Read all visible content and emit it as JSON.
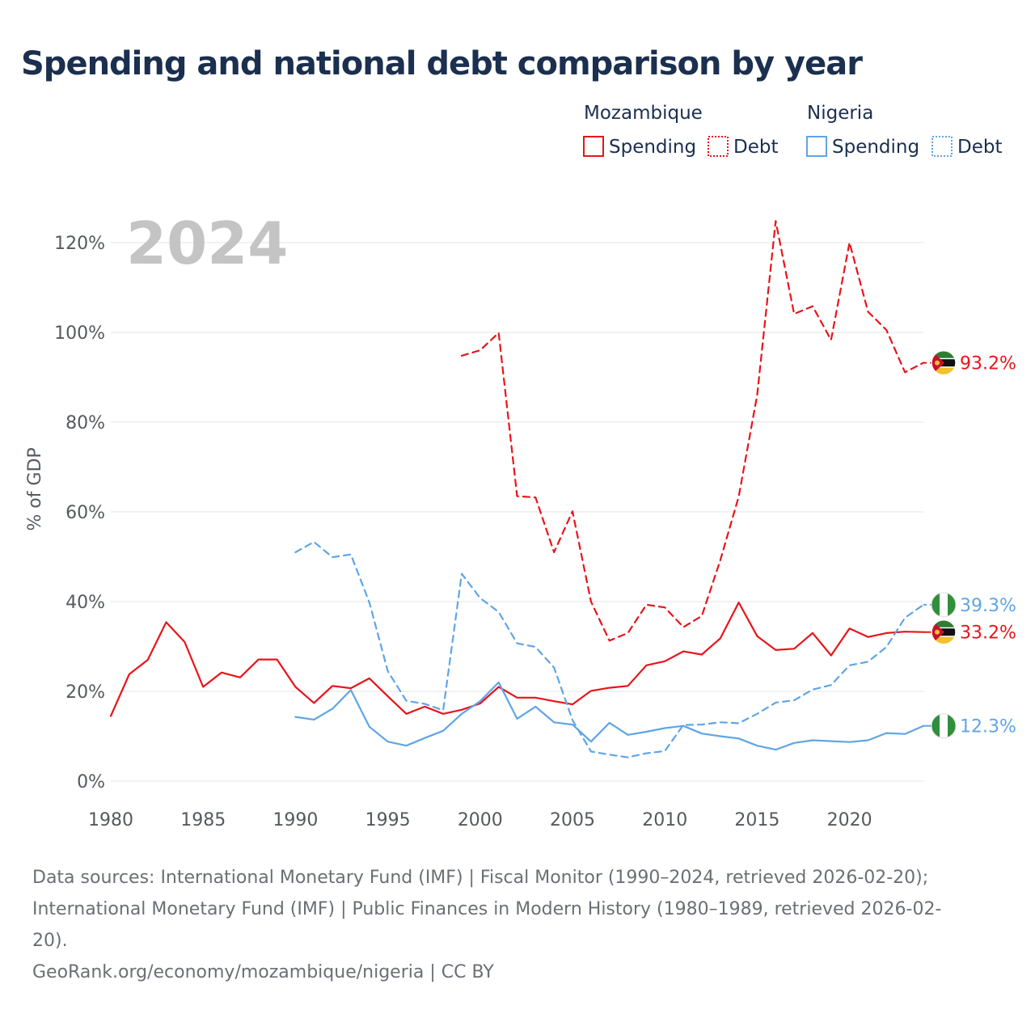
{
  "colors": {
    "mozambique": "#e8141a",
    "nigeria": "#5fa5e6",
    "title": "#1b2f4f",
    "axis_text": "#555a60"
  },
  "chart_data": {
    "type": "line",
    "title": "Spending and national debt comparison by year",
    "year_label": "2024",
    "ylabel": "% of GDP",
    "xlabel": "",
    "xlim": [
      1980,
      2024
    ],
    "ylim": [
      0,
      125
    ],
    "y_ticks": [
      {
        "value": 0,
        "label": "0%"
      },
      {
        "value": 20,
        "label": "20%"
      },
      {
        "value": 40,
        "label": "40%"
      },
      {
        "value": 60,
        "label": "60%"
      },
      {
        "value": 80,
        "label": "80%"
      },
      {
        "value": 100,
        "label": "100%"
      },
      {
        "value": 120,
        "label": "120%"
      }
    ],
    "x_ticks": [
      {
        "value": 1980,
        "label": "1980"
      },
      {
        "value": 1985,
        "label": "1985"
      },
      {
        "value": 1990,
        "label": "1990"
      },
      {
        "value": 1995,
        "label": "1995"
      },
      {
        "value": 2000,
        "label": "2000"
      },
      {
        "value": 2005,
        "label": "2005"
      },
      {
        "value": 2010,
        "label": "2010"
      },
      {
        "value": 2015,
        "label": "2015"
      },
      {
        "value": 2020,
        "label": "2020"
      }
    ],
    "legend": {
      "groups": [
        {
          "country": "Mozambique",
          "items": [
            {
              "label": "Spending",
              "style": "solid"
            },
            {
              "label": "Debt",
              "style": "dashed"
            }
          ]
        },
        {
          "country": "Nigeria",
          "items": [
            {
              "label": "Spending",
              "style": "solid"
            },
            {
              "label": "Debt",
              "style": "dashed"
            }
          ]
        }
      ]
    },
    "series": [
      {
        "name": "Mozambique Spending",
        "country": "mozambique",
        "style": "solid",
        "end_label": "33.2%",
        "x": [
          1980,
          1981,
          1982,
          1983,
          1984,
          1985,
          1986,
          1987,
          1988,
          1989,
          1990,
          1991,
          1992,
          1993,
          1994,
          1995,
          1996,
          1997,
          1998,
          1999,
          2000,
          2001,
          2002,
          2003,
          2004,
          2005,
          2006,
          2007,
          2008,
          2009,
          2010,
          2011,
          2012,
          2013,
          2014,
          2015,
          2016,
          2017,
          2018,
          2019,
          2020,
          2021,
          2022,
          2023,
          2024
        ],
        "values": [
          14.5,
          23.8,
          27.0,
          35.4,
          31.0,
          21.0,
          24.2,
          23.1,
          27.1,
          27.1,
          21.0,
          17.4,
          21.2,
          20.7,
          22.9,
          18.9,
          15.0,
          16.6,
          15.0,
          15.9,
          17.3,
          21.0,
          18.6,
          18.6,
          17.8,
          17.1,
          20.1,
          20.8,
          21.2,
          25.8,
          26.7,
          28.9,
          28.2,
          31.8,
          39.8,
          32.3,
          29.2,
          29.5,
          33.0,
          28.0,
          34.0,
          32.1,
          33.0,
          33.3,
          33.2
        ]
      },
      {
        "name": "Mozambique Debt",
        "country": "mozambique",
        "style": "dashed",
        "end_label": "93.2%",
        "x": [
          1999,
          2000,
          2001,
          2002,
          2003,
          2004,
          2005,
          2006,
          2007,
          2008,
          2009,
          2010,
          2011,
          2012,
          2013,
          2014,
          2015,
          2016,
          2017,
          2018,
          2019,
          2020,
          2021,
          2022,
          2023,
          2024
        ],
        "values": [
          94.8,
          96.0,
          99.9,
          63.5,
          63.2,
          51.0,
          60.1,
          40.0,
          31.3,
          33.0,
          39.3,
          38.7,
          34.3,
          36.8,
          49.2,
          63.4,
          86.0,
          124.8,
          104.1,
          105.8,
          98.3,
          120.0,
          104.6,
          100.5,
          91.1,
          93.2
        ]
      },
      {
        "name": "Nigeria Spending",
        "country": "nigeria",
        "style": "solid",
        "end_label": "12.3%",
        "x": [
          1990,
          1991,
          1992,
          1993,
          1994,
          1995,
          1996,
          1997,
          1998,
          1999,
          2000,
          2001,
          2002,
          2003,
          2004,
          2005,
          2006,
          2007,
          2008,
          2009,
          2010,
          2011,
          2012,
          2013,
          2014,
          2015,
          2016,
          2017,
          2018,
          2019,
          2020,
          2021,
          2022,
          2023,
          2024
        ],
        "values": [
          14.3,
          13.7,
          16.1,
          20.3,
          12.1,
          8.8,
          7.9,
          9.6,
          11.2,
          15.0,
          17.8,
          22.0,
          13.9,
          16.6,
          13.1,
          12.6,
          8.8,
          13.0,
          10.3,
          11.0,
          11.8,
          12.3,
          10.6,
          10.0,
          9.5,
          7.9,
          7.0,
          8.5,
          9.1,
          8.9,
          8.7,
          9.1,
          10.7,
          10.5,
          12.3
        ]
      },
      {
        "name": "Nigeria Debt",
        "country": "nigeria",
        "style": "dashed",
        "end_label": "39.3%",
        "x": [
          1990,
          1991,
          1992,
          1993,
          1994,
          1995,
          1996,
          1997,
          1998,
          1999,
          2000,
          2001,
          2002,
          2003,
          2004,
          2005,
          2006,
          2007,
          2008,
          2009,
          2010,
          2011,
          2012,
          2013,
          2014,
          2015,
          2016,
          2017,
          2018,
          2019,
          2020,
          2021,
          2022,
          2023,
          2024
        ],
        "values": [
          51.0,
          53.3,
          49.9,
          50.5,
          39.8,
          24.5,
          17.9,
          17.2,
          15.8,
          46.2,
          40.8,
          37.7,
          30.7,
          29.9,
          25.3,
          13.6,
          6.6,
          5.9,
          5.3,
          6.2,
          6.7,
          12.5,
          12.6,
          13.1,
          12.9,
          15.0,
          17.5,
          18.0,
          20.4,
          21.4,
          25.8,
          26.6,
          29.9,
          36.4,
          39.3
        ]
      }
    ]
  },
  "footer": {
    "line1": "Data sources: International Monetary Fund (IMF) | Fiscal Monitor (1990–2024, retrieved 2026-02-20);",
    "line2": "International Monetary Fund (IMF) | Public Finances in Modern History (1980–1989, retrieved 2026-02-",
    "line3": "20).",
    "line4": "GeoRank.org/economy/mozambique/nigeria | CC BY"
  }
}
